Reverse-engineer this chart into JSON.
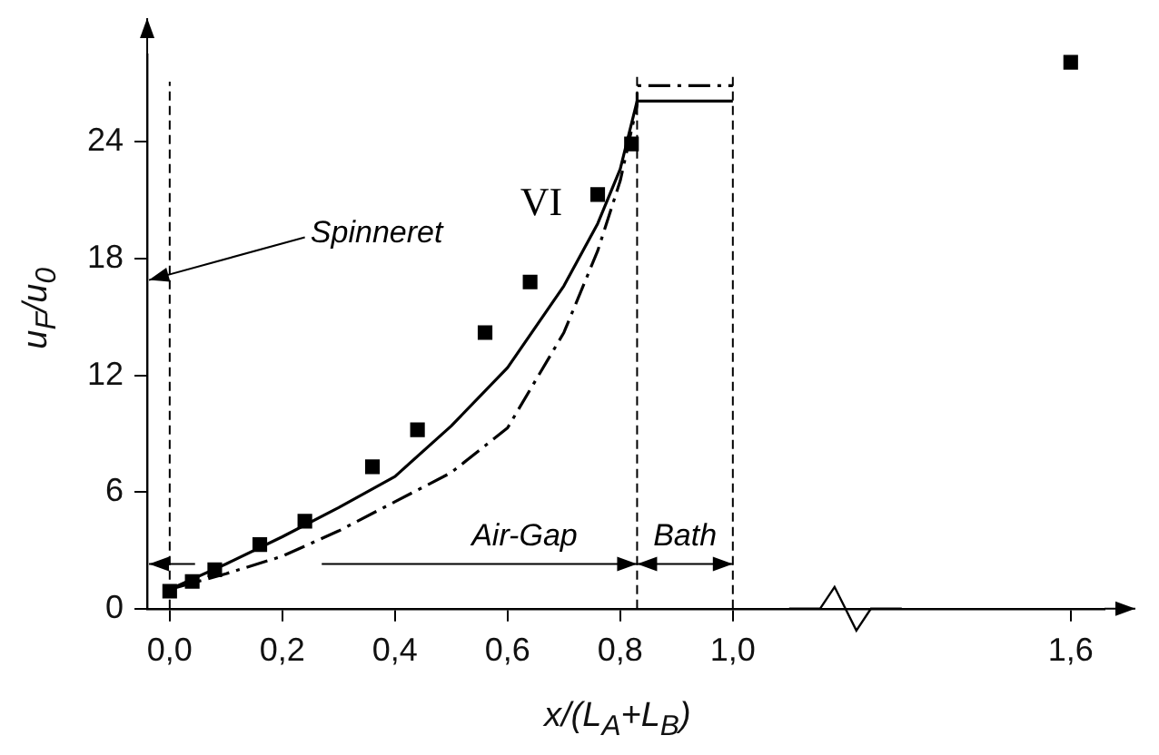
{
  "chart_data": {
    "type": "scatter",
    "xlabel": "x/(L$_{A}$+L$_{B}$)",
    "ylabel": "u$_{F}$/u$_{0}$",
    "xlim": [
      -0.04,
      1.66
    ],
    "ylim": [
      0,
      28.5
    ],
    "xticks": [
      {
        "value": 0,
        "label": "0,0"
      },
      {
        "value": 0.2,
        "label": "0,2"
      },
      {
        "value": 0.4,
        "label": "0,4"
      },
      {
        "value": 0.6,
        "label": "0,6"
      },
      {
        "value": 0.8,
        "label": "0,8"
      },
      {
        "value": 1.0,
        "label": "1,0"
      },
      {
        "value": 1.6,
        "label": "1,6"
      }
    ],
    "yticks": [
      0,
      6,
      12,
      18,
      24
    ],
    "grid": false,
    "legend": false,
    "series": [
      {
        "color": "#000000",
        "marker": "square",
        "x": [
          0,
          0.04,
          0.08,
          0.16,
          0.24,
          0.36,
          0.44,
          0.56,
          0.64,
          0.76,
          0.82,
          1.6
        ],
        "values": [
          0.9,
          1.4,
          2.0,
          3.3,
          4.5,
          7.3,
          9.2,
          14.2,
          16.8,
          21.3,
          23.9,
          28.1
        ]
      },
      {
        "type": "line",
        "color": "#000000",
        "line_style": "solid",
        "x": [
          0,
          0.1,
          0.2,
          0.3,
          0.4,
          0.5,
          0.6,
          0.7,
          0.76,
          0.8,
          0.83,
          1.0
        ],
        "values": [
          1.0,
          2.3,
          3.7,
          5.2,
          6.8,
          9.4,
          12.4,
          16.6,
          19.8,
          22.6,
          26.1,
          26.1
        ]
      },
      {
        "type": "line",
        "color": "#000000",
        "line_style": "dashed",
        "x": [
          0,
          0.1,
          0.2,
          0.3,
          0.4,
          0.5,
          0.6,
          0.7,
          0.76,
          0.8,
          0.83,
          0.83,
          1.0
        ],
        "values": [
          1.0,
          1.8,
          2.7,
          4.0,
          5.5,
          7.0,
          9.3,
          14.2,
          18.4,
          22.0,
          25.9,
          26.9,
          26.9
        ]
      }
    ],
    "ref_lines": [
      {
        "axis": "x",
        "value": 0,
        "label": "Spinneret",
        "line_style": "dashed"
      },
      {
        "axis": "x",
        "value": 0.83,
        "line_style": "dashed"
      },
      {
        "axis": "x",
        "value": 1.0,
        "line_style": "dashed"
      }
    ],
    "annotations": [
      "VI",
      "Air-Gap",
      "Bath"
    ]
  }
}
